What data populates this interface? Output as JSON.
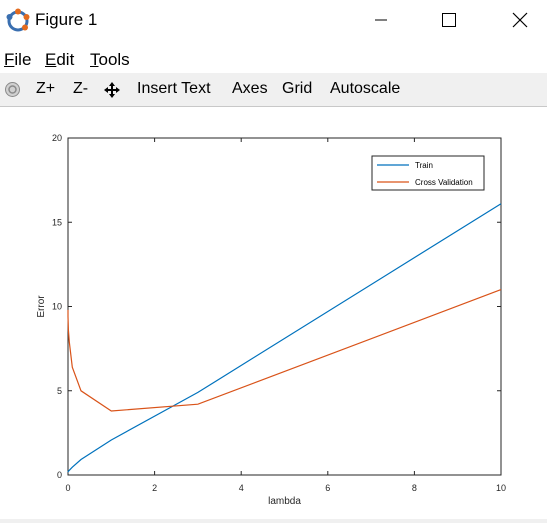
{
  "window": {
    "title": "Figure 1"
  },
  "menu": {
    "file": "ile",
    "file_u": "F",
    "edit": "dit",
    "edit_u": "E",
    "tools": "ools",
    "tools_u": "T"
  },
  "toolbar": {
    "zoom_in": "Z+",
    "zoom_out": "Z-",
    "insert_text": "Insert Text",
    "axes": "Axes",
    "grid": "Grid",
    "autoscale": "Autoscale"
  },
  "colors": {
    "train": "#0072bd",
    "cv": "#d95319",
    "toolbar_bg": "#f0f0f0"
  },
  "chart_data": {
    "type": "line",
    "xlabel": "lambda",
    "ylabel": "Error",
    "xlim": [
      0,
      10
    ],
    "ylim": [
      0,
      20
    ],
    "xticks": [
      0,
      2,
      4,
      6,
      8,
      10
    ],
    "yticks": [
      0,
      5,
      10,
      15,
      20
    ],
    "legend_position": "top-right",
    "grid": false,
    "series": [
      {
        "name": "Train",
        "x": [
          0,
          0.001,
          0.003,
          0.01,
          0.03,
          0.1,
          0.3,
          1,
          3,
          10
        ],
        "y": [
          0.17,
          0.18,
          0.19,
          0.22,
          0.28,
          0.46,
          0.92,
          2.08,
          4.9,
          16.1
        ]
      },
      {
        "name": "Cross Validation",
        "x": [
          0,
          0.001,
          0.003,
          0.01,
          0.03,
          0.1,
          0.3,
          1,
          3,
          10
        ],
        "y": [
          9.8,
          9.4,
          9.2,
          8.6,
          7.9,
          6.4,
          5.0,
          3.8,
          4.2,
          11.0
        ]
      }
    ]
  }
}
